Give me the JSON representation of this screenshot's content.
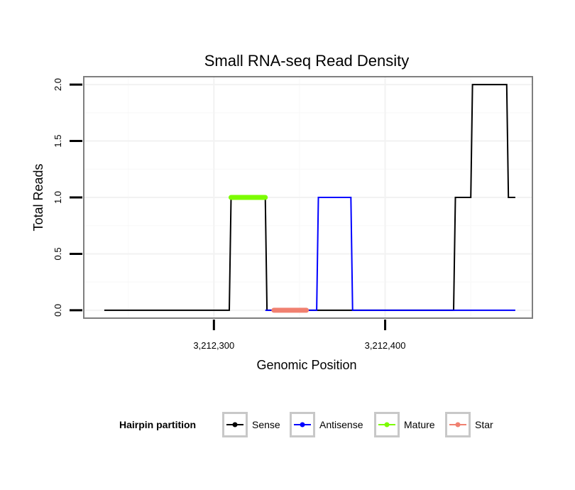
{
  "chart_data": {
    "type": "line",
    "title": "Small RNA-seq Read Density",
    "xlabel": "Genomic Position",
    "ylabel": "Total Reads",
    "xlim": [
      3212224,
      3212486
    ],
    "ylim": [
      -0.07,
      2.07
    ],
    "x_ticks": [
      {
        "value": 3212300,
        "label": "3,212,300"
      },
      {
        "value": 3212400,
        "label": "3,212,400"
      }
    ],
    "y_ticks": [
      {
        "value": 0,
        "label": "0.0"
      },
      {
        "value": 0.5,
        "label": "0.5"
      },
      {
        "value": 1,
        "label": "1.0"
      },
      {
        "value": 1.5,
        "label": "1.5"
      },
      {
        "value": 2,
        "label": "2.0"
      }
    ],
    "grid": true,
    "legend": {
      "title": "Hairpin partition",
      "position": "bottom",
      "items": [
        {
          "name": "Sense",
          "color": "#000000"
        },
        {
          "name": "Antisense",
          "color": "#0000ff"
        },
        {
          "name": "Mature",
          "color": "#7cfc00"
        },
        {
          "name": "Star",
          "color": "#f08070"
        }
      ]
    },
    "series": [
      {
        "name": "Sense",
        "color": "#000000",
        "width": 2,
        "x": [
          3212236,
          3212309,
          3212310,
          3212330,
          3212331,
          3212440,
          3212441,
          3212450,
          3212451,
          3212471,
          3212472,
          3212476
        ],
        "y": [
          0,
          0,
          1,
          1,
          0,
          0,
          1,
          1,
          2,
          2,
          1,
          1
        ]
      },
      {
        "name": "Antisense",
        "color": "#0000ff",
        "width": 2,
        "x": [
          3212330,
          3212360,
          3212361,
          3212380,
          3212381,
          3212476
        ],
        "y": [
          0,
          0,
          1,
          1,
          0,
          0
        ]
      },
      {
        "name": "Mature",
        "color": "#7cfc00",
        "width": 7,
        "x": [
          3212310,
          3212330
        ],
        "y": [
          1,
          1
        ]
      },
      {
        "name": "Star",
        "color": "#f08070",
        "width": 7,
        "x": [
          3212335,
          3212354
        ],
        "y": [
          0,
          0
        ]
      }
    ]
  }
}
